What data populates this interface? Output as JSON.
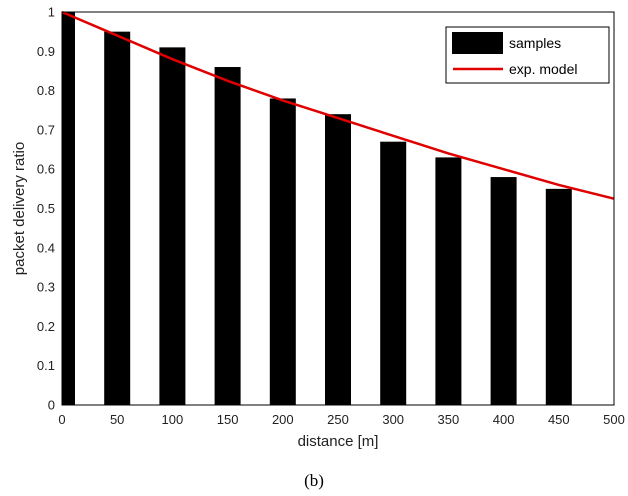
{
  "chart_data": {
    "type": "bar",
    "x": [
      0,
      50,
      100,
      150,
      200,
      250,
      300,
      350,
      400,
      450
    ],
    "series": [
      {
        "name": "samples",
        "type": "bar",
        "color": "#000000",
        "values": [
          1.0,
          0.95,
          0.91,
          0.86,
          0.78,
          0.74,
          0.67,
          0.63,
          0.58,
          0.55
        ]
      },
      {
        "name": "exp. model",
        "type": "line",
        "color": "#e00000",
        "x": [
          0,
          50,
          100,
          150,
          200,
          250,
          300,
          350,
          400,
          450,
          500
        ],
        "values": [
          1.0,
          0.94,
          0.88,
          0.825,
          0.775,
          0.73,
          0.685,
          0.64,
          0.6,
          0.56,
          0.525
        ]
      }
    ],
    "xlabel": "distance [m]",
    "ylabel": "packet delivery ratio",
    "xlim": [
      0,
      500
    ],
    "ylim": [
      0,
      1
    ],
    "xticks": [
      0,
      50,
      100,
      150,
      200,
      250,
      300,
      350,
      400,
      450,
      500
    ],
    "yticks": [
      0,
      0.1,
      0.2,
      0.3,
      0.4,
      0.5,
      0.6,
      0.7,
      0.8,
      0.9,
      1
    ],
    "grid": false,
    "legend": "top-right",
    "caption": "(b)"
  }
}
